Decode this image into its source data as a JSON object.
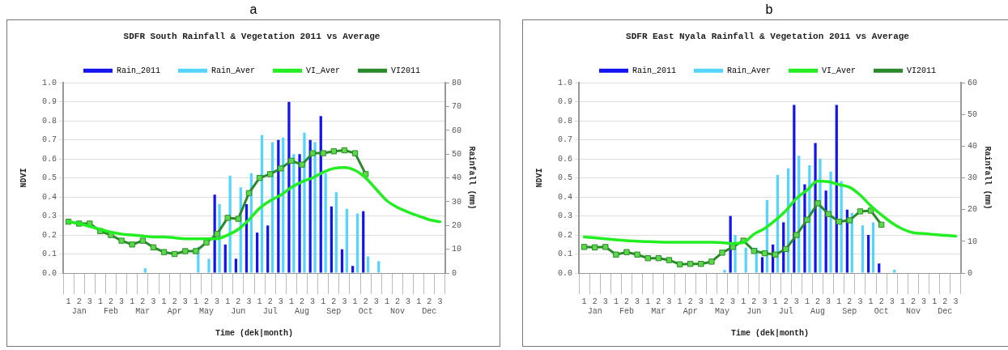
{
  "chart_data": [
    {
      "type": "bar",
      "title": "SDFR South Rainfall & Vegetation 2011 vs Average",
      "annotations": [
        "a"
      ],
      "xlabel": "Time (dek|month)",
      "ylabel": "NDVI",
      "y2label": "Rainfall (mm)",
      "legend": "top",
      "grid": "y",
      "categories": [
        "1",
        "2\nJan",
        "3",
        "1",
        "2\nFeb",
        "3",
        "1",
        "2\nMar",
        "3",
        "1",
        "2\nApr",
        "3",
        "1",
        "2\nMay",
        "3",
        "1",
        "2\nJun",
        "3",
        "1",
        "2\nJul",
        "3",
        "1",
        "2\nAug",
        "3",
        "1",
        "2\nSep",
        "3",
        "1",
        "2\nOct",
        "3",
        "1",
        "2\nNov",
        "3",
        "1",
        "2\nDec",
        "3"
      ],
      "ylim": [
        0,
        1
      ],
      "yticks": [
        {
          "value": 0,
          "label": "0.0"
        },
        {
          "value": 0.1,
          "label": "0.1"
        },
        {
          "value": 0.2,
          "label": "0.2"
        },
        {
          "value": 0.3,
          "label": "0.3"
        },
        {
          "value": 0.4,
          "label": "0.4"
        },
        {
          "value": 0.5,
          "label": "0.5"
        },
        {
          "value": 0.6,
          "label": "0.6"
        },
        {
          "value": 0.7,
          "label": "0.7"
        },
        {
          "value": 0.8,
          "label": "0.8"
        },
        {
          "value": 0.9,
          "label": "0.9"
        },
        {
          "value": 1,
          "label": "1.0"
        }
      ],
      "y2lim": [
        0,
        80
      ],
      "y2ticks": [
        0,
        10,
        20,
        30,
        40,
        50,
        60,
        70,
        80
      ],
      "series": [
        {
          "name": "Rain_2011",
          "axis": "y2",
          "color": "#1414f0",
          "values": [
            0,
            0,
            0,
            0,
            0,
            0,
            0,
            0,
            0,
            0,
            0,
            0,
            0,
            0,
            33,
            12,
            6,
            29,
            17,
            20,
            56,
            72,
            50,
            56,
            66,
            28,
            10,
            3,
            26,
            0,
            0,
            0,
            0,
            0,
            0,
            0
          ]
        },
        {
          "name": "Rain_Aver",
          "axis": "y2",
          "color": "#55d4ff",
          "values": [
            0,
            0,
            0,
            0,
            0,
            0,
            0,
            2,
            0,
            0,
            0,
            0,
            11,
            6,
            29,
            41,
            36,
            42,
            58,
            55,
            57,
            50,
            59,
            55,
            42,
            34,
            27,
            25,
            7,
            5,
            0,
            0,
            0,
            0,
            0,
            0
          ]
        },
        {
          "name": "VI_Aver",
          "type": "line",
          "marker": "none",
          "color": "#22ee22",
          "values": [
            0.27,
            0.26,
            0.245,
            0.23,
            0.215,
            0.205,
            0.2,
            0.195,
            0.19,
            0.19,
            0.185,
            0.18,
            0.18,
            0.18,
            0.18,
            0.2,
            0.23,
            0.28,
            0.34,
            0.38,
            0.41,
            0.45,
            0.48,
            0.5,
            0.53,
            0.55,
            0.555,
            0.54,
            0.5,
            0.44,
            0.38,
            0.345,
            0.32,
            0.3,
            0.28,
            0.27
          ]
        },
        {
          "name": "VI2011",
          "type": "line",
          "marker": "square",
          "color": "#2a8a2a",
          "values": [
            0.27,
            0.26,
            0.26,
            0.22,
            0.2,
            0.17,
            0.15,
            0.17,
            0.135,
            0.11,
            0.1,
            0.115,
            0.115,
            0.16,
            0.205,
            0.29,
            0.285,
            0.42,
            0.5,
            0.52,
            0.55,
            0.59,
            0.57,
            0.63,
            0.63,
            0.64,
            0.645,
            0.63,
            0.52,
            null,
            null,
            null,
            null,
            null,
            null,
            null
          ]
        }
      ]
    },
    {
      "type": "bar",
      "title": "SDFR East Nyala Rainfall & Vegetation 2011 vs Average",
      "annotations": [
        "b"
      ],
      "xlabel": "Time (dek|month)",
      "ylabel": "NDVI",
      "y2label": "Rainfall (mm)",
      "legend": "top",
      "grid": "y",
      "categories": [
        "1",
        "2\nJan",
        "3",
        "1",
        "2\nFeb",
        "3",
        "1",
        "2\nMar",
        "3",
        "1",
        "2\nApr",
        "3",
        "1",
        "2\nMay",
        "3",
        "1",
        "2\nJun",
        "3",
        "1",
        "2\nJul",
        "3",
        "1",
        "2\nAug",
        "3",
        "1",
        "2\nSep",
        "3",
        "1",
        "2\nOct",
        "3",
        "1",
        "2\nNov",
        "3",
        "1",
        "2\nDec",
        "3"
      ],
      "ylim": [
        0,
        1
      ],
      "yticks": [
        {
          "value": 0,
          "label": "0.0"
        },
        {
          "value": 0.1,
          "label": "0.1"
        },
        {
          "value": 0.2,
          "label": "0.2"
        },
        {
          "value": 0.3,
          "label": "0.3"
        },
        {
          "value": 0.4,
          "label": "0.4"
        },
        {
          "value": 0.5,
          "label": "0.5"
        },
        {
          "value": 0.6,
          "label": "0.6"
        },
        {
          "value": 0.7,
          "label": "0.7"
        },
        {
          "value": 0.8,
          "label": "0.8"
        },
        {
          "value": 0.9,
          "label": "0.9"
        },
        {
          "value": 1,
          "label": "1.0"
        }
      ],
      "y2lim": [
        0,
        60
      ],
      "y2ticks": [
        0,
        10,
        20,
        30,
        40,
        50,
        60
      ],
      "series": [
        {
          "name": "Rain_2011",
          "axis": "y2",
          "color": "#1414f0",
          "values": [
            0,
            0,
            0,
            0,
            0,
            0,
            0,
            0,
            0,
            0,
            0,
            0,
            0,
            0,
            18,
            0,
            0,
            5,
            9,
            16,
            53,
            28,
            41,
            26,
            53,
            20,
            0,
            12,
            3,
            0,
            0,
            0,
            0,
            0,
            0,
            0
          ]
        },
        {
          "name": "Rain_Aver",
          "axis": "y2",
          "color": "#55d4ff",
          "values": [
            0,
            0,
            0,
            0,
            0,
            0,
            0,
            0,
            0,
            0,
            0,
            0,
            0,
            1,
            12,
            8,
            8,
            23,
            31,
            33,
            37,
            34,
            36,
            32,
            29,
            19,
            15,
            16,
            0,
            1,
            0,
            0,
            0,
            0,
            0,
            0
          ]
        },
        {
          "name": "VI_Aver",
          "type": "line",
          "marker": "none",
          "color": "#22ee22",
          "values": [
            0.19,
            0.185,
            0.18,
            0.175,
            0.17,
            0.167,
            0.165,
            0.163,
            0.162,
            0.162,
            0.162,
            0.162,
            0.162,
            0.16,
            0.155,
            0.16,
            0.205,
            0.234,
            0.277,
            0.328,
            0.393,
            0.436,
            0.483,
            0.48,
            0.465,
            0.451,
            0.41,
            0.353,
            0.306,
            0.263,
            0.231,
            0.212,
            0.208,
            0.202,
            0.198,
            0.194
          ]
        },
        {
          "name": "VI2011",
          "type": "line",
          "marker": "square",
          "color": "#2a8a2a",
          "values": [
            0.137,
            0.135,
            0.137,
            0.097,
            0.11,
            0.097,
            0.078,
            0.078,
            0.068,
            0.046,
            0.048,
            0.048,
            0.06,
            0.107,
            0.137,
            0.17,
            0.116,
            0.104,
            0.097,
            0.126,
            0.2,
            0.28,
            0.367,
            0.31,
            0.27,
            0.277,
            0.324,
            0.328,
            0.254,
            null,
            null,
            null,
            null,
            null,
            null,
            null
          ]
        }
      ]
    }
  ]
}
